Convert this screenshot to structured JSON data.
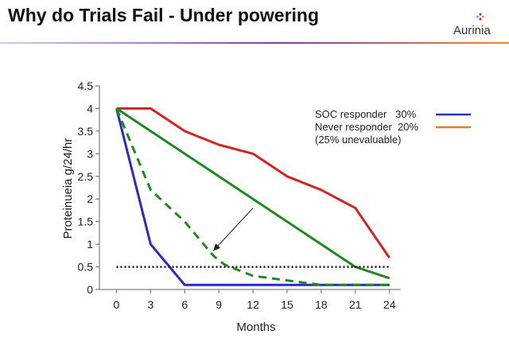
{
  "header": {
    "title": "Why do Trials Fail - Under powering",
    "logo_text": "Aurinia"
  },
  "chart_data": {
    "type": "line",
    "ylabel": "Proteinueia g/24/hr",
    "xlabel": "Months",
    "xlim": [
      -1.5,
      25
    ],
    "ylim": [
      0,
      4.5
    ],
    "x_ticks": [
      0,
      3,
      6,
      9,
      12,
      15,
      18,
      21,
      24
    ],
    "y_ticks": [
      0,
      0.5,
      1,
      1.5,
      2,
      2.5,
      3,
      3.5,
      4,
      4.5
    ],
    "y_tick_labels": [
      "0",
      "0.5",
      "1",
      "1.5",
      "2",
      "2.5",
      "3",
      "3.5",
      "4",
      "4.5"
    ],
    "grid": false,
    "legend": {
      "placement": "top-right",
      "entries": [
        {
          "label": "SOC responder   30%",
          "color": "#2233cc"
        },
        {
          "label": "Never responder  20%",
          "color": "#ee7722"
        },
        {
          "label": "(25% unevaluable)",
          "color": ""
        }
      ]
    },
    "series": [
      {
        "color": "#d62222",
        "style": "solid",
        "x": [
          0,
          3,
          6,
          9,
          12,
          15,
          18,
          21,
          24
        ],
        "y": [
          4,
          4,
          3.5,
          3.2,
          3,
          2.5,
          2.2,
          1.8,
          0.7
        ]
      },
      {
        "color": "#1e8a1e",
        "style": "solid",
        "x": [
          0,
          21,
          24
        ],
        "y": [
          4,
          0.5,
          0.25
        ]
      },
      {
        "color": "#2a2acc",
        "style": "solid",
        "x": [
          0,
          3,
          6,
          24
        ],
        "y": [
          4,
          1,
          0.1,
          0.1
        ]
      },
      {
        "color": "#1e8a1e",
        "style": "dashed",
        "x": [
          0,
          3,
          6,
          8.5,
          9.5,
          12,
          15,
          18,
          24
        ],
        "y": [
          4,
          2.2,
          1.5,
          0.75,
          0.55,
          0.3,
          0.2,
          0.1,
          0.1
        ]
      },
      {
        "color": "#111111",
        "style": "dotted",
        "x": [
          0,
          24
        ],
        "y": [
          0.5,
          0.5
        ]
      }
    ],
    "annotations": [
      {
        "type": "arrow",
        "from": [
          12,
          1.8
        ],
        "to": [
          8.5,
          0.85
        ]
      }
    ]
  }
}
